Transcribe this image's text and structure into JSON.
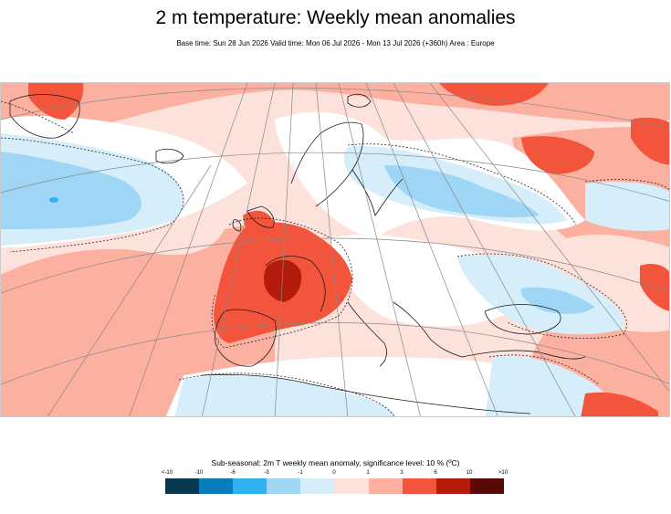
{
  "title": "2 m temperature: Weekly mean anomalies",
  "subtitle": "Base time: Sun 28 Jun 2026 Valid time: Mon 06 Jul 2026 - Mon 13 Jul 2026 (+360h) Area : Europe",
  "legend": {
    "title": "Sub-seasonal: 2m T weekly mean anomaly, significance level: 10 % (ºC)",
    "tick_labels": [
      "<-10",
      "-10",
      "-6",
      "-3",
      "-1",
      "0",
      "1",
      "3",
      "6",
      "10",
      ">10"
    ],
    "colors": [
      "#08384f",
      "#0a7cba",
      "#30b2f2",
      "#9fd6f5",
      "#d6eefa",
      "#fde2dc",
      "#fbb0a0",
      "#f2553c",
      "#b31c0c",
      "#5a0a06"
    ]
  },
  "map": {
    "area": "Europe",
    "region_fills": {
      "negative_light": "#d6eefa",
      "negative_medium": "#9fd6f5",
      "negative_strong": "#30b2f2",
      "neutral": "#ffffff",
      "positive_light": "#fde2dc",
      "positive_medium": "#fbb0a0",
      "positive_strong": "#f2553c",
      "positive_very_strong": "#b31c0c"
    }
  }
}
